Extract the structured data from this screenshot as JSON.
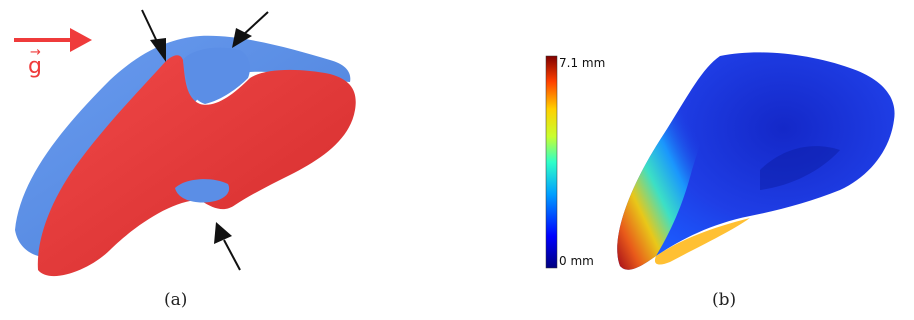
{
  "panel_a": {
    "caption": "(a)",
    "gravity_label": "g",
    "gravity_vector_mark": "→",
    "colors": {
      "blue_surface": "#5b8ee6",
      "red_surface": "#e83d3d",
      "arrow_black": "#111111",
      "gravity_arrow": "#ef3b3b"
    }
  },
  "panel_b": {
    "caption": "(b)",
    "colorbar": {
      "max_label": "7.1 mm",
      "min_label": "0 mm",
      "colormap": "jet"
    }
  }
}
